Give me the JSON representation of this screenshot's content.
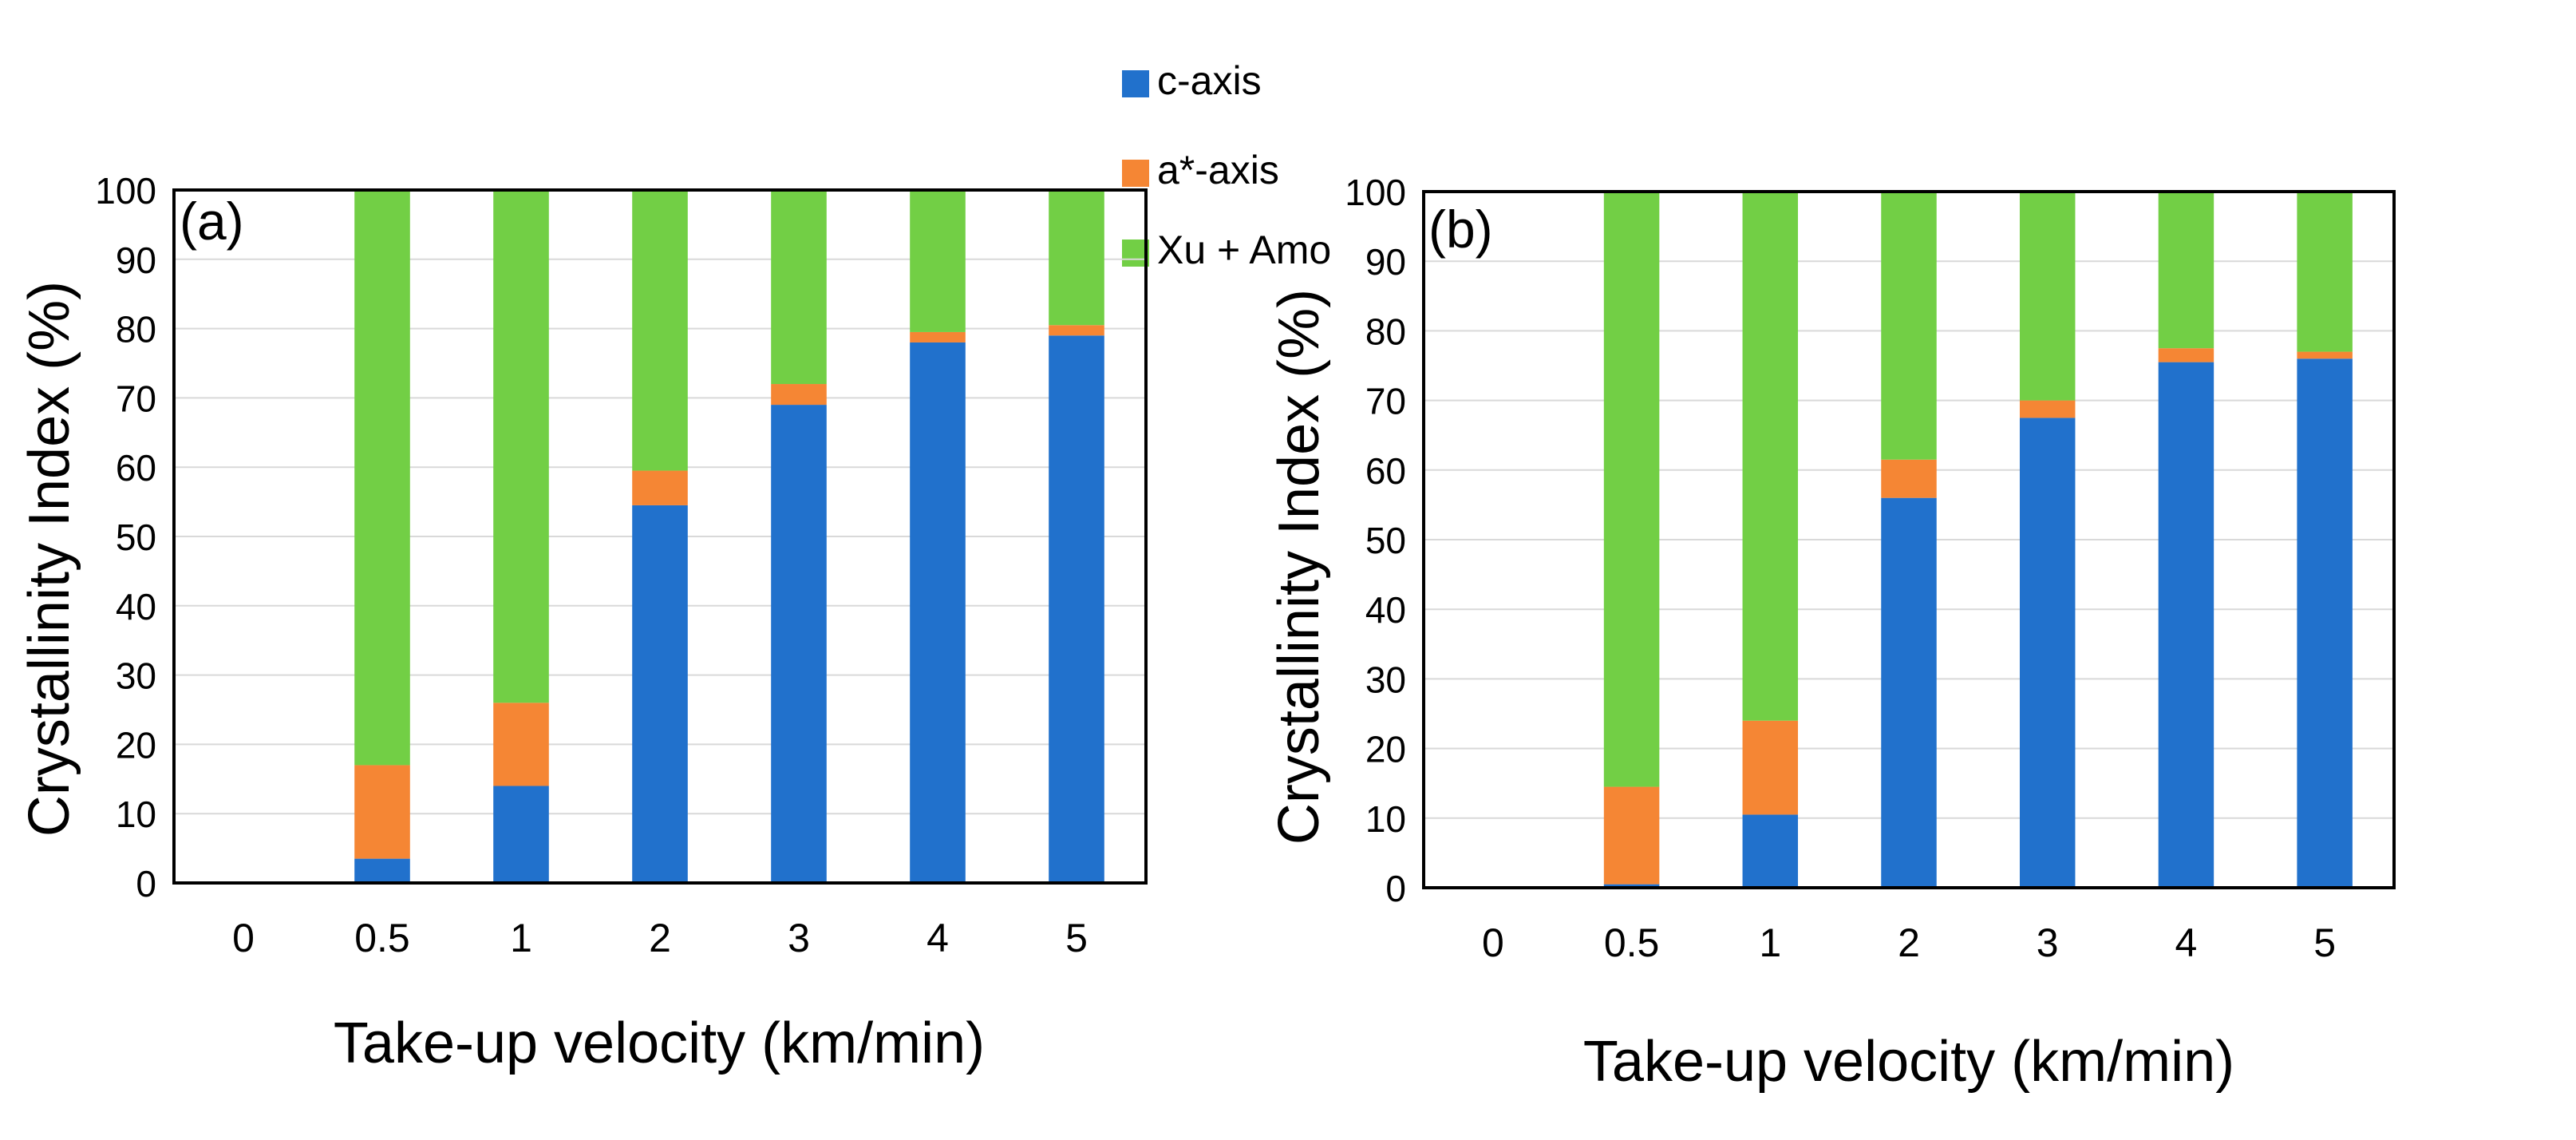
{
  "legend": {
    "items": [
      {
        "label": "c-axis",
        "color": "#2171cc"
      },
      {
        "label": "a*-axis",
        "color": "#f58634"
      },
      {
        "label": "Xu + Amo",
        "color": "#72cf45"
      }
    ]
  },
  "chart_data": [
    {
      "type": "bar",
      "stacked": true,
      "panel_label": "(a)",
      "categories": [
        "0",
        "0.5",
        "1",
        "2",
        "3",
        "4",
        "5"
      ],
      "series": [
        {
          "name": "c-axis",
          "color": "#2171cc",
          "values": [
            0,
            3.5,
            14,
            54.5,
            69,
            78,
            79
          ]
        },
        {
          "name": "a*-axis",
          "color": "#f58634",
          "values": [
            0,
            13.5,
            12,
            5,
            3,
            1.5,
            1.5
          ]
        },
        {
          "name": "Xu + Amo",
          "color": "#72cf45",
          "values": [
            0,
            83,
            74,
            40.5,
            28,
            20.5,
            19.5
          ]
        }
      ],
      "xlabel": "Take-up velocity (km/min)",
      "ylabel": "Crystallinity Index (%)",
      "ylim": [
        0,
        100
      ],
      "yticks": [
        "0",
        "10",
        "20",
        "30",
        "40",
        "50",
        "60",
        "70",
        "80",
        "90",
        "100"
      ],
      "grid": true
    },
    {
      "type": "bar",
      "stacked": true,
      "panel_label": "(b)",
      "categories": [
        "0",
        "0.5",
        "1",
        "2",
        "3",
        "4",
        "5"
      ],
      "series": [
        {
          "name": "c-axis",
          "color": "#2171cc",
          "values": [
            0,
            0.5,
            10.5,
            56,
            67.5,
            75.5,
            76
          ]
        },
        {
          "name": "a*-axis",
          "color": "#f58634",
          "values": [
            0,
            14,
            13.5,
            5.5,
            2.5,
            2,
            1
          ]
        },
        {
          "name": "Xu + Amo",
          "color": "#72cf45",
          "values": [
            0,
            85.5,
            76,
            38.5,
            30,
            22.5,
            23
          ]
        }
      ],
      "xlabel": "Take-up velocity (km/min)",
      "ylabel": "Crystallinity Index (%)",
      "ylim": [
        0,
        100
      ],
      "yticks": [
        "0",
        "10",
        "20",
        "30",
        "40",
        "50",
        "60",
        "70",
        "80",
        "90",
        "100"
      ],
      "grid": true
    }
  ]
}
